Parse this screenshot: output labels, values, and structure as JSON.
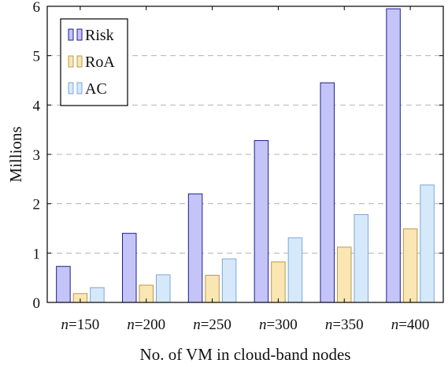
{
  "chart_data": {
    "type": "bar",
    "xlabel": "No. of VM in cloud-band nodes",
    "ylabel": "Millions",
    "ylim": [
      0,
      6
    ],
    "yticks": [
      "0",
      "1",
      "2",
      "3",
      "4",
      "5",
      "6"
    ],
    "grid": "horizontal dashed",
    "legend_position": "top-left",
    "categories": [
      {
        "var": "n",
        "eq": "=",
        "num": "150"
      },
      {
        "var": "n",
        "eq": "=",
        "num": "200"
      },
      {
        "var": "n",
        "eq": "=",
        "num": "250"
      },
      {
        "var": "n",
        "eq": "=",
        "num": "300"
      },
      {
        "var": "n",
        "eq": "=",
        "num": "350"
      },
      {
        "var": "n",
        "eq": "=",
        "num": "400"
      }
    ],
    "series": [
      {
        "name": "Risk",
        "values": [
          0.73,
          1.4,
          2.2,
          3.28,
          4.45,
          5.95
        ],
        "fill": "#c4c4f9",
        "stroke": "#1f1f8a"
      },
      {
        "name": "RoA",
        "values": [
          0.18,
          0.35,
          0.55,
          0.82,
          1.12,
          1.49
        ],
        "fill": "#fae6b2",
        "stroke": "#b89a4e"
      },
      {
        "name": "AC",
        "values": [
          0.3,
          0.56,
          0.88,
          1.31,
          1.78,
          2.38
        ],
        "fill": "#d6e9fb",
        "stroke": "#7ea7cf"
      }
    ]
  }
}
